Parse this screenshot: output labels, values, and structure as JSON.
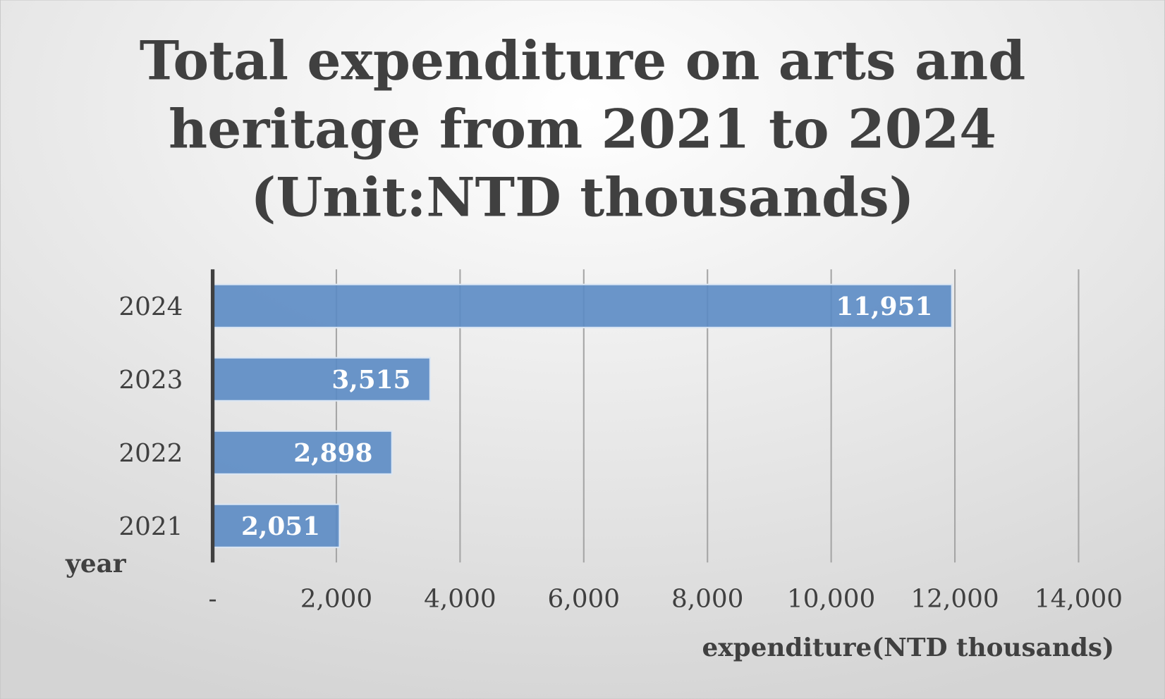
{
  "chart_data": {
    "type": "bar",
    "orientation": "horizontal",
    "title": [
      "Total expenditure on arts and",
      "heritage from 2021 to 2024",
      "(Unit:NTD thousands)"
    ],
    "xlabel": "expenditure(NTD thousands)",
    "ylabel": "year",
    "categories": [
      "2021",
      "2022",
      "2023",
      "2024"
    ],
    "values": [
      2051,
      2898,
      3515,
      11951
    ],
    "data_labels": [
      "2,051",
      "2,898",
      "3,515",
      "11,951"
    ],
    "xlim": [
      0,
      14000
    ],
    "xticks": [
      0,
      2000,
      4000,
      6000,
      8000,
      10000,
      12000,
      14000
    ],
    "xtick_labels": [
      "-",
      "2,000",
      "4,000",
      "6,000",
      "8,000",
      "10,000",
      "12,000",
      "14,000"
    ],
    "grid": "vertical",
    "legend": "none",
    "colors": {
      "bar": "#5b8bc4",
      "text": "#404040",
      "background": "#e6e6e6"
    }
  }
}
